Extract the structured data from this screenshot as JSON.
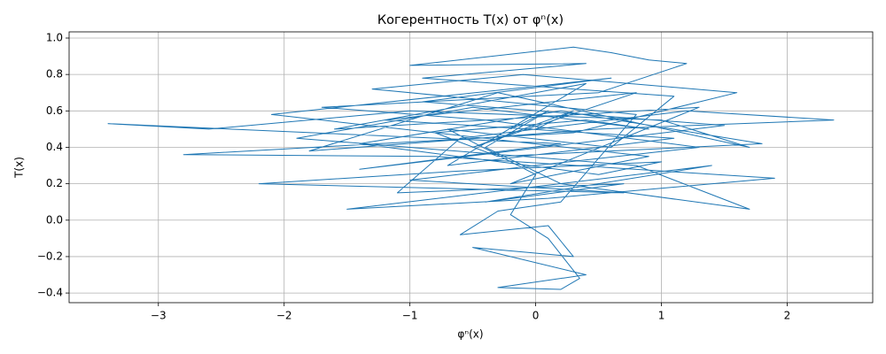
{
  "chart_data": {
    "type": "line",
    "title": "Когерентность T(x) от φⁿ(x)",
    "xlabel": "φⁿ(x)",
    "ylabel": "T(x)",
    "color": "#1f77b4",
    "grid": true,
    "xlim": [
      -3.71,
      2.68
    ],
    "ylim": [
      -0.453,
      1.034
    ],
    "xticks": [
      {
        "value": -3,
        "label": "−3"
      },
      {
        "value": -2,
        "label": "−2"
      },
      {
        "value": -1,
        "label": "−1"
      },
      0,
      1,
      2
    ],
    "yticks": [
      {
        "value": -0.4,
        "label": "−0.4"
      },
      {
        "value": -0.2,
        "label": "−0.2"
      },
      {
        "value": 0,
        "label": "0.0"
      },
      0.2,
      0.4,
      0.6,
      0.8,
      {
        "value": 1,
        "label": "1.0"
      }
    ],
    "x": [
      0,
      0.3,
      -0.5,
      0.8,
      -1.2,
      1.1,
      -0.7,
      0.4,
      -1.6,
      1.3,
      -0.2,
      0.9,
      -2.1,
      0.6,
      -0.9,
      1.5,
      -1.4,
      0.2,
      -3.4,
      -2.6,
      -1.0,
      1.0,
      1.7,
      -0.3,
      -1.8,
      0.5,
      2.37,
      1.2,
      -0.6,
      -1.1,
      0.7,
      -0.4,
      1.4,
      -1.5,
      0.1,
      1.9,
      -0.8,
      -2.8,
      0.3,
      1.6,
      -0.1,
      -1.3,
      0.8,
      0.2,
      -0.3,
      -0.6,
      0.1,
      0.3,
      -0.5,
      0.4,
      -0.3,
      0.2,
      0.35,
      0.1,
      -0.2,
      0.0,
      -0.7,
      0.6,
      1.1,
      -0.9,
      0.4,
      -1.0,
      0.3,
      0.6,
      0.9,
      1.2,
      0.5,
      -1.7,
      -0.4,
      1.3,
      0.0,
      -1.0,
      0.7,
      -2.2,
      -0.6,
      1.0,
      0.5,
      -1.4,
      0.2,
      1.8,
      -0.3,
      -0.8,
      0.4,
      0.9,
      -0.5,
      -1.9,
      0.8,
      1.7,
      0.2,
      -0.4,
      0.1,
      -0.2
    ],
    "values": [
      0.5,
      0.6,
      0.4,
      0.7,
      0.55,
      0.45,
      0.3,
      0.75,
      0.5,
      0.62,
      0.2,
      0.35,
      0.58,
      0.78,
      0.65,
      0.52,
      0.28,
      0.42,
      0.53,
      0.5,
      0.6,
      0.55,
      0.4,
      0.7,
      0.38,
      0.5,
      0.55,
      0.6,
      0.45,
      0.15,
      0.2,
      0.1,
      0.3,
      0.06,
      0.12,
      0.23,
      0.35,
      0.36,
      0.48,
      0.7,
      0.8,
      0.72,
      0.58,
      0.1,
      0.05,
      -0.08,
      -0.03,
      -0.2,
      -0.15,
      -0.3,
      -0.37,
      -0.38,
      -0.32,
      -0.1,
      0.03,
      0.25,
      0.5,
      0.4,
      0.68,
      0.78,
      0.86,
      0.85,
      0.95,
      0.92,
      0.88,
      0.86,
      0.7,
      0.62,
      0.55,
      0.4,
      0.3,
      0.22,
      0.15,
      0.2,
      0.27,
      0.32,
      0.25,
      0.42,
      0.6,
      0.42,
      0.35,
      0.48,
      0.55,
      0.5,
      0.62,
      0.45,
      0.3,
      0.06,
      0.2,
      0.4,
      0.6,
      0.5
    ]
  }
}
